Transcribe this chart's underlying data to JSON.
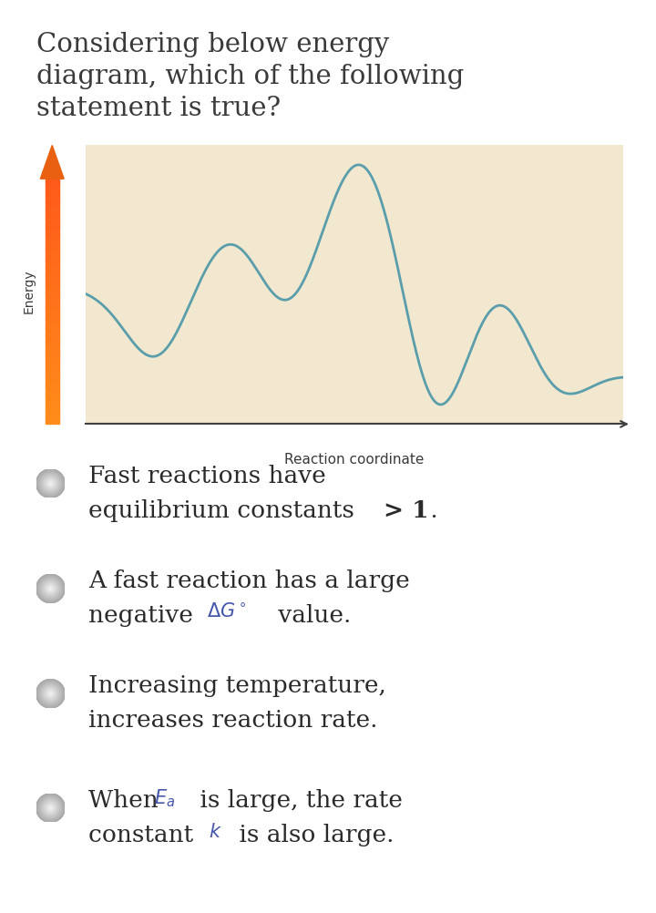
{
  "title_line1": "Considering below energy",
  "title_line2": "diagram, which of the following",
  "title_line3": "statement is true?",
  "title_fontsize": 21,
  "title_color": "#3a3a3a",
  "bg_color": "#ffffff",
  "plot_bg_color": "#f2e8d0",
  "curve_color": "#5b9eab",
  "curve_lw": 2.0,
  "xlabel": "Reaction coordinate",
  "ylabel": "Energy",
  "xlabel_fontsize": 11,
  "ylabel_fontsize": 10,
  "option_fontsize": 19,
  "text_color": "#2a2a2a",
  "math_color": "#4455aa",
  "circle_color_outer": "#b8b8b8",
  "circle_color_inner": "#d8d8d8"
}
